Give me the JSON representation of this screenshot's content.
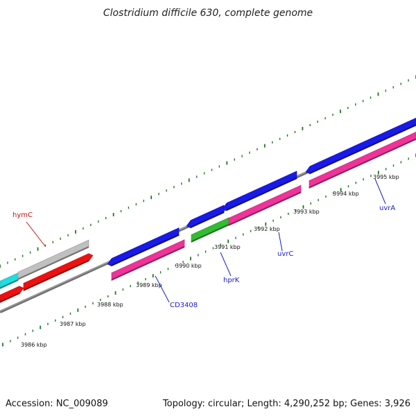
{
  "title": "Clostridium difficile 630, complete genome",
  "footer": {
    "accession": "Accession: NC_009089",
    "topology": "Topology: circular; Length: 4,290,252 bp; Genes: 3,926"
  },
  "colors": {
    "backbone": "#808080",
    "tick": "#1e7a1e",
    "forward_gene": "#1a1ae6",
    "reverse_cds": "#ee3399",
    "rrna": "#ee1111",
    "pseudo": "#c0c0c0",
    "trna": "#22dddd",
    "green_gene": "#33bb33",
    "blue_label": "#1a1acc",
    "red_label": "#cc1111"
  },
  "scale_labels": [
    "3986 kbp",
    "3987 kbp",
    "3988 kbp",
    "3989 kbp",
    "3990 kbp",
    "3991 kbp",
    "3992 kbp",
    "3993 kbp",
    "3994 kbp",
    "3995 kbp"
  ],
  "gene_labels": [
    {
      "text": "hymC",
      "color_key": "red_label"
    },
    {
      "text": "CD3408",
      "color_key": "blue_label"
    },
    {
      "text": "hprK",
      "color_key": "blue_label"
    },
    {
      "text": "uvrC",
      "color_key": "blue_label"
    },
    {
      "text": "uvrA",
      "color_key": "blue_label"
    }
  ]
}
